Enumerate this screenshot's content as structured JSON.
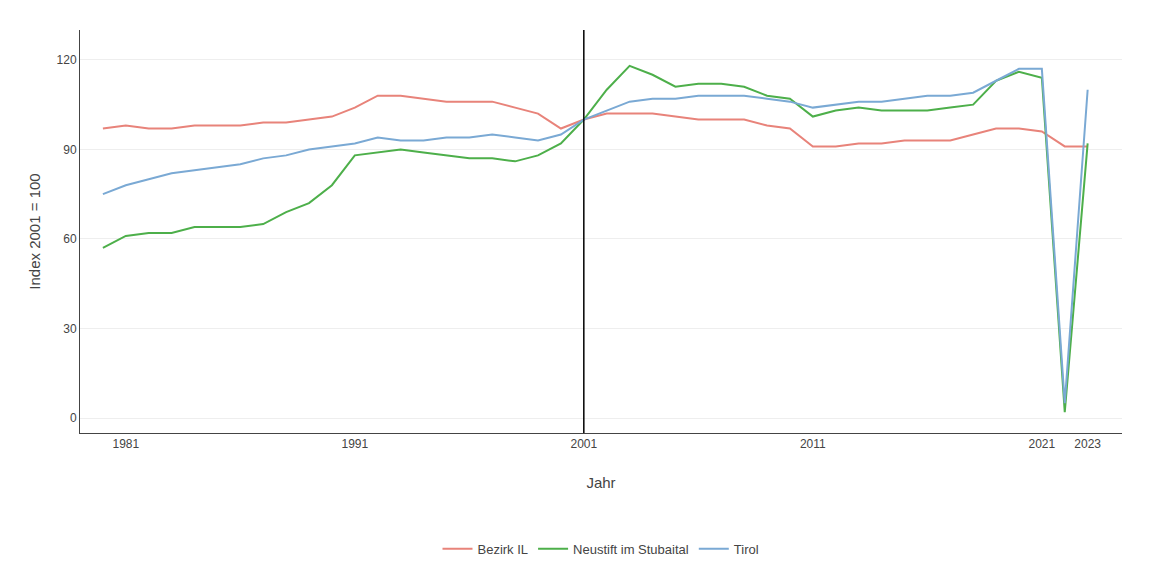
{
  "chart_data": {
    "type": "line",
    "xlabel": "Jahr",
    "ylabel": "Index 2001 = 100",
    "x": [
      1980,
      1981,
      1982,
      1983,
      1984,
      1985,
      1986,
      1987,
      1988,
      1989,
      1990,
      1991,
      1992,
      1993,
      1994,
      1995,
      1996,
      1997,
      1998,
      1999,
      2000,
      2001,
      2002,
      2003,
      2004,
      2005,
      2006,
      2007,
      2008,
      2009,
      2010,
      2011,
      2012,
      2013,
      2014,
      2015,
      2016,
      2017,
      2018,
      2019,
      2020,
      2021,
      2022,
      2023
    ],
    "series": [
      {
        "name": "Bezirk IL",
        "color": "#e8837a",
        "values": [
          97,
          98,
          97,
          97,
          98,
          98,
          98,
          99,
          99,
          100,
          101,
          104,
          108,
          108,
          107,
          106,
          106,
          106,
          104,
          102,
          97,
          100,
          102,
          102,
          102,
          101,
          100,
          100,
          100,
          98,
          97,
          91,
          91,
          92,
          92,
          93,
          93,
          93,
          95,
          97,
          97,
          96,
          91,
          91
        ]
      },
      {
        "name": "Neustift im Stubaital",
        "color": "#4daf4a",
        "values": [
          57,
          61,
          62,
          62,
          64,
          64,
          64,
          65,
          69,
          72,
          78,
          88,
          89,
          90,
          89,
          88,
          87,
          87,
          86,
          88,
          92,
          100,
          110,
          118,
          115,
          111,
          112,
          112,
          111,
          108,
          107,
          101,
          103,
          104,
          103,
          103,
          103,
          104,
          105,
          113,
          116,
          114,
          2,
          92
        ]
      },
      {
        "name": "Tirol",
        "color": "#7aa9d4",
        "values": [
          75,
          78,
          80,
          82,
          83,
          84,
          85,
          87,
          88,
          90,
          91,
          92,
          94,
          93,
          93,
          94,
          94,
          95,
          94,
          93,
          95,
          100,
          103,
          106,
          107,
          107,
          108,
          108,
          108,
          107,
          106,
          104,
          105,
          106,
          106,
          107,
          108,
          108,
          109,
          113,
          117,
          117,
          5,
          110
        ]
      }
    ],
    "vline": 2001,
    "xlim": [
      1979,
      2024.5
    ],
    "xticks": [
      1981,
      1991,
      2001,
      2011,
      2021,
      2023
    ],
    "ylim": [
      -5,
      130
    ],
    "yticks": [
      0,
      30,
      60,
      90,
      120
    ],
    "grid": "y",
    "legend": "bottom"
  }
}
